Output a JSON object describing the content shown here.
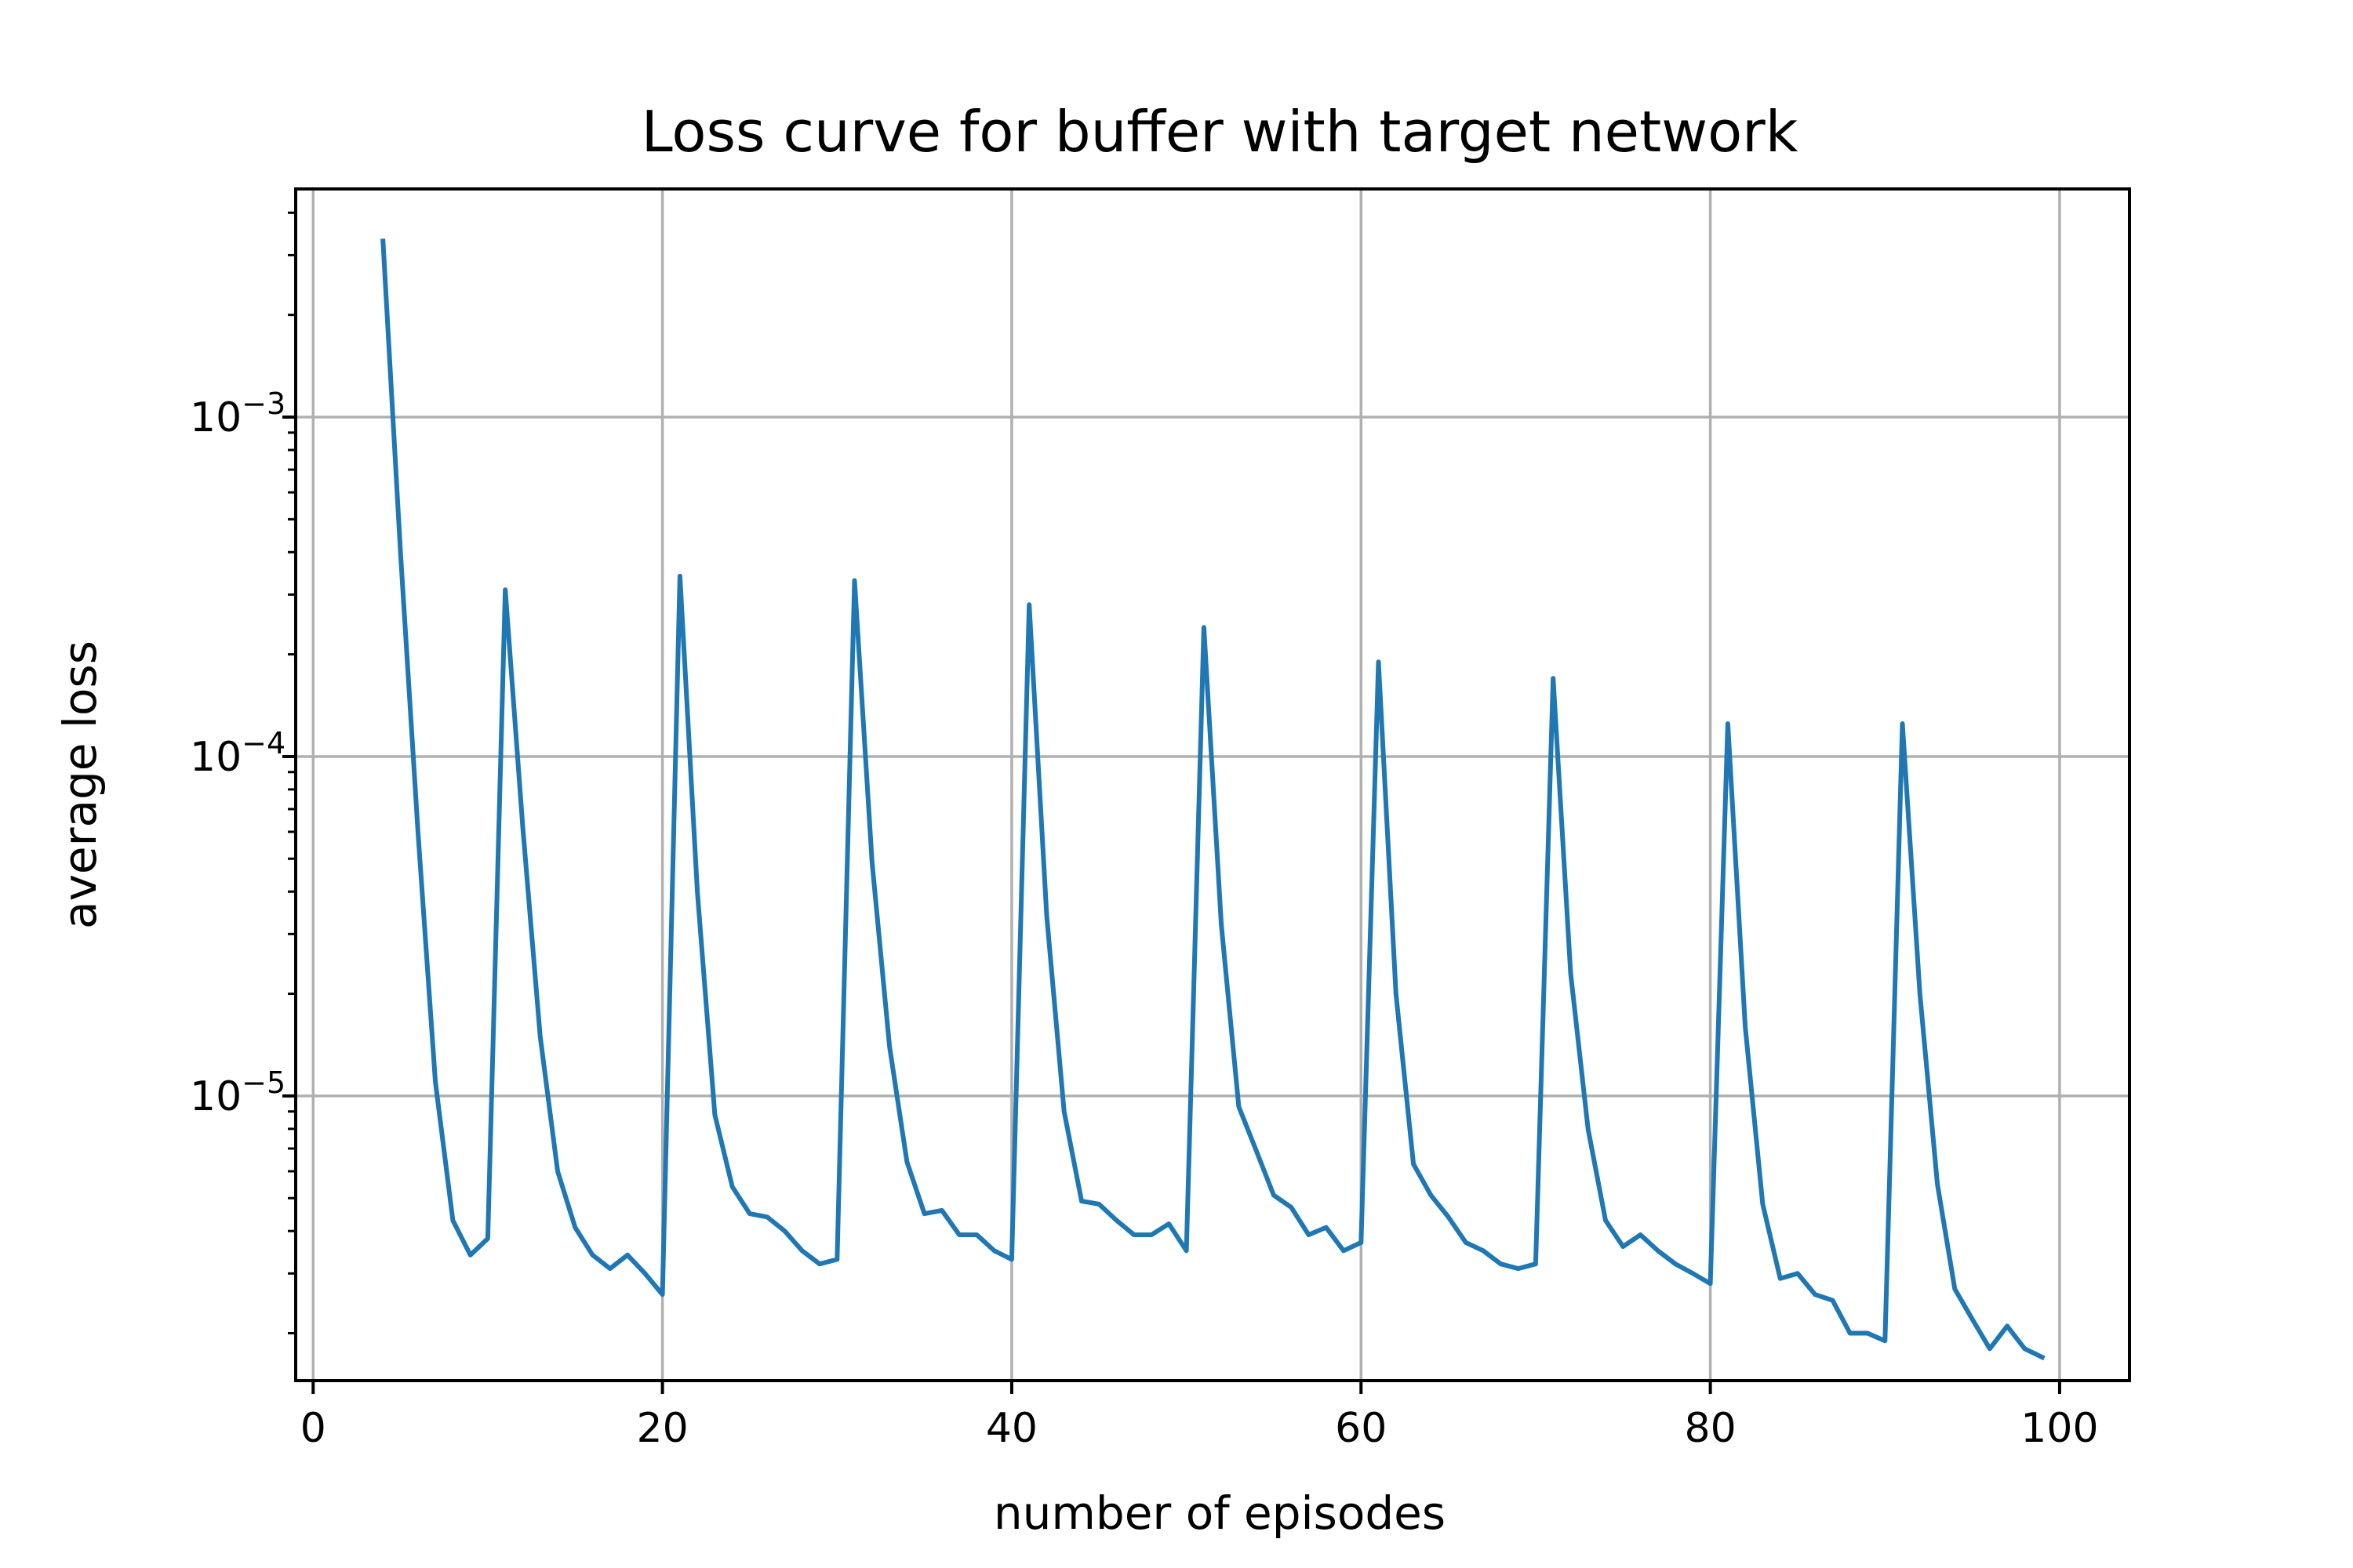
{
  "chart_data": {
    "type": "line",
    "title": "Loss curve for buffer with target network",
    "xlabel": "number of episodes",
    "ylabel": "average loss",
    "xlim": [
      -1,
      104
    ],
    "ylim": [
      1.45e-06,
      0.0047
    ],
    "yscale": "log",
    "grid": true,
    "x_ticks": [
      0,
      20,
      40,
      60,
      80,
      100
    ],
    "x_tick_labels": [
      "0",
      "20",
      "40",
      "60",
      "80",
      "100"
    ],
    "y_ticks": [
      1e-05,
      0.0001,
      0.001
    ],
    "y_tick_bases": [
      "10",
      "10",
      "10"
    ],
    "y_tick_exponents": [
      "−5",
      "−4",
      "−3"
    ],
    "series": [
      {
        "color": "#1f77b4",
        "x": [
          4,
          5,
          6,
          7,
          8,
          9,
          10,
          11,
          12,
          13,
          14,
          15,
          16,
          17,
          18,
          19,
          20,
          21,
          22,
          23,
          24,
          25,
          26,
          27,
          28,
          29,
          30,
          31,
          32,
          33,
          34,
          35,
          36,
          37,
          38,
          39,
          40,
          41,
          42,
          43,
          44,
          45,
          46,
          47,
          48,
          49,
          50,
          51,
          52,
          53,
          54,
          55,
          56,
          57,
          58,
          59,
          60,
          61,
          62,
          63,
          64,
          65,
          66,
          67,
          68,
          69,
          70,
          71,
          72,
          73,
          74,
          75,
          76,
          77,
          78,
          79,
          80,
          81,
          82,
          83,
          84,
          85,
          86,
          87,
          88,
          89,
          90,
          91,
          92,
          93,
          94,
          95,
          96,
          97,
          98,
          99
        ],
        "y": [
          0.0033,
          0.0004,
          6e-05,
          1.1e-05,
          4.3e-06,
          3.4e-06,
          3.8e-06,
          0.00031,
          6.2e-05,
          1.5e-05,
          6e-06,
          4.1e-06,
          3.4e-06,
          3.1e-06,
          3.4e-06,
          3e-06,
          2.6e-06,
          0.00034,
          4e-05,
          8.8e-06,
          5.4e-06,
          4.5e-06,
          4.4e-06,
          4e-06,
          3.5e-06,
          3.2e-06,
          3.3e-06,
          0.00033,
          4.9e-05,
          1.4e-05,
          6.4e-06,
          4.5e-06,
          4.6e-06,
          3.9e-06,
          3.9e-06,
          3.5e-06,
          3.3e-06,
          0.00028,
          3.4e-05,
          9e-06,
          4.9e-06,
          4.8e-06,
          4.3e-06,
          3.9e-06,
          3.9e-06,
          4.2e-06,
          3.5e-06,
          0.00024,
          3.2e-05,
          9.3e-06,
          6.9e-06,
          5.1e-06,
          4.7e-06,
          3.9e-06,
          4.1e-06,
          3.5e-06,
          3.7e-06,
          0.00019,
          2e-05,
          6.3e-06,
          5.1e-06,
          4.4e-06,
          3.7e-06,
          3.5e-06,
          3.2e-06,
          3.1e-06,
          3.2e-06,
          0.00017,
          2.3e-05,
          8e-06,
          4.3e-06,
          3.6e-06,
          3.9e-06,
          3.5e-06,
          3.2e-06,
          3e-06,
          2.8e-06,
          0.000125,
          1.6e-05,
          4.8e-06,
          2.9e-06,
          3e-06,
          2.6e-06,
          2.5e-06,
          2e-06,
          2e-06,
          1.9e-06,
          0.000125,
          2e-05,
          5.5e-06,
          2.7e-06,
          2.2e-06,
          1.8e-06,
          2.1e-06,
          1.8e-06,
          1.7e-06
        ]
      }
    ]
  }
}
